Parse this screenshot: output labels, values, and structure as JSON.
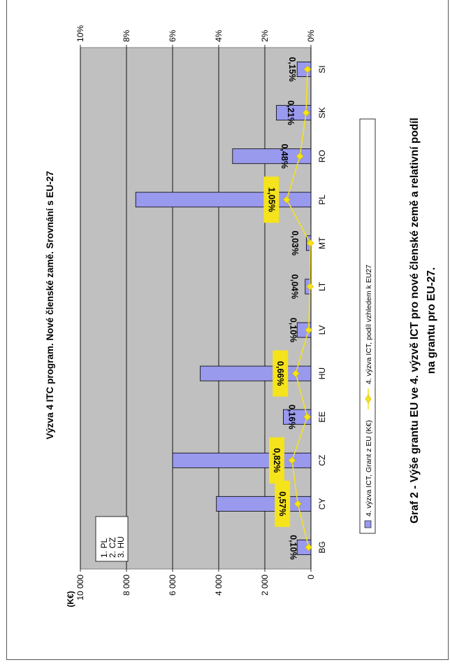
{
  "chart_data": {
    "type": "bar",
    "title": "Výzva 4 ITC program. Nové členské zamě. Srovnání s EU-27",
    "categories": [
      "BG",
      "CY",
      "CZ",
      "EE",
      "HU",
      "LV",
      "LT",
      "MT",
      "PL",
      "RO",
      "SK",
      "SI"
    ],
    "series": [
      {
        "name": "4. výzva ICT, Grant z EU (K€)",
        "axis": "left",
        "color": "#9999ee",
        "values": [
          600,
          4100,
          6000,
          1200,
          4800,
          600,
          250,
          200,
          7600,
          3400,
          1500,
          600
        ]
      },
      {
        "name": "4. výzva ICT, podíl vzhledem k EU27",
        "axis": "right",
        "color": "#f5e31c",
        "values": [
          0.1,
          0.57,
          0.82,
          0.16,
          0.66,
          0.1,
          0.04,
          0.03,
          1.05,
          0.48,
          0.21,
          0.15
        ]
      }
    ],
    "data_labels": [
      "0,10%",
      "0,57%",
      "0,82%",
      "0,16%",
      "0,66%",
      "0,10%",
      "0,04%",
      "0,03%",
      "1,05%",
      "0,48%",
      "0,21%",
      "0,15%"
    ],
    "y_left_ticks": [
      "0",
      "2 000",
      "4 000",
      "6 000",
      "8 000",
      "10 000"
    ],
    "y_left_range": [
      0,
      10000
    ],
    "y_left_unit": "(K€)",
    "y_right_ticks": [
      "0%",
      "2%",
      "4%",
      "6%",
      "8%",
      "10%"
    ],
    "y_right_range": [
      0,
      10
    ],
    "grid": true,
    "rotation": "rotated 90° counter-clockwise",
    "ranking": [
      "1. PL",
      "2. CZ",
      "3. HU"
    ],
    "caption_lines": [
      "Graf 2 - Výše grantu EU ve 4. výzvě ICT pro nové členské země a relativní podíl",
      "na  grantu pro EU-27."
    ]
  },
  "colors": {
    "plot_bg": "#c0c0c0",
    "bar": "#9999ee",
    "line": "#f5e31c",
    "label_highlight": "#f5e31c"
  }
}
